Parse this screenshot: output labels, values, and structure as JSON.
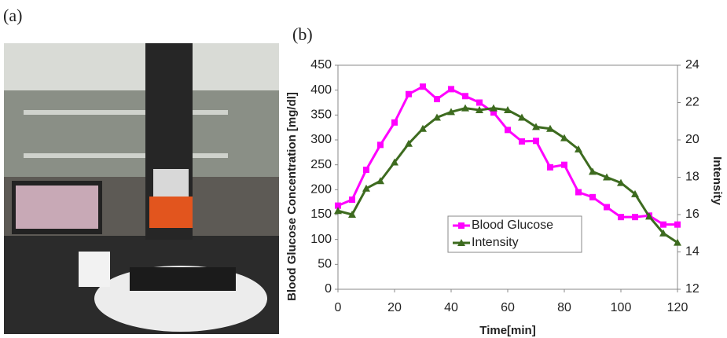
{
  "panel_labels": [
    "(a)",
    "(b)"
  ],
  "chart_data": {
    "type": "line",
    "y_label": "Blood Glucose Concentration [mg/dl]",
    "y2_label": "Intensity",
    "x_label": "Time[min]",
    "x": [
      0,
      5,
      10,
      15,
      20,
      25,
      30,
      35,
      40,
      45,
      50,
      55,
      60,
      65,
      70,
      75,
      80,
      85,
      90,
      95,
      100,
      105,
      110,
      115,
      120
    ],
    "xlim": [
      0,
      120
    ],
    "xticks": [
      0,
      20,
      40,
      60,
      80,
      100,
      120
    ],
    "ylim": [
      0,
      450
    ],
    "yticks": [
      0,
      50,
      100,
      150,
      200,
      250,
      300,
      350,
      400,
      450
    ],
    "y2lim": [
      12,
      24
    ],
    "y2ticks": [
      12,
      14,
      16,
      18,
      20,
      22,
      24
    ],
    "legend": "center",
    "series": [
      {
        "name": "Blood Glucose",
        "color": "#ff00ff",
        "marker": "square",
        "values": [
          168,
          180,
          240,
          290,
          335,
          392,
          407,
          382,
          402,
          388,
          375,
          355,
          320,
          297,
          298,
          245,
          250,
          195,
          185,
          165,
          145,
          145,
          148,
          130,
          130
        ]
      },
      {
        "name": "Intensity",
        "color": "#3d6b1f",
        "marker": "triangle",
        "axis": "y2",
        "values": [
          16.2,
          16.0,
          17.4,
          17.8,
          18.8,
          19.8,
          20.6,
          21.2,
          21.5,
          21.7,
          21.6,
          21.7,
          21.6,
          21.2,
          20.7,
          20.6,
          20.1,
          19.5,
          18.3,
          18.0,
          17.7,
          17.1,
          15.9,
          15.0,
          14.5
        ]
      }
    ]
  }
}
